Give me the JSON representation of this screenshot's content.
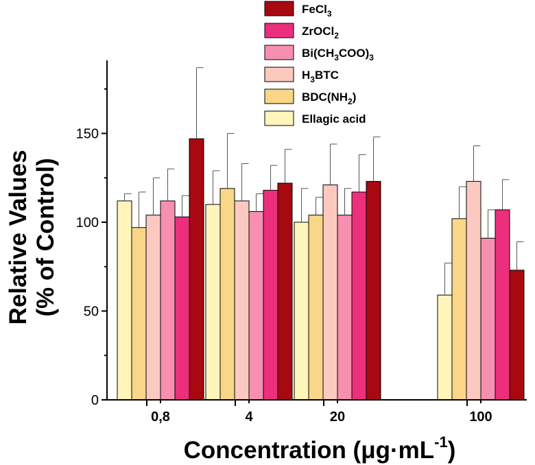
{
  "chart_data": {
    "type": "bar",
    "title": "",
    "xlabel": "Concentration (μg·mL",
    "xlabel_sup": "-1",
    "xlabel_tail": ")",
    "ylabel_line1": "Relative Values",
    "ylabel_line2": "(% of Control)",
    "ylim": [
      0,
      190
    ],
    "yticks": [
      0,
      50,
      100,
      150
    ],
    "categories": [
      "0,8",
      "4",
      "20",
      "100"
    ],
    "series": [
      {
        "name": "Ellagic acid",
        "color": "#FFF5BA",
        "values": [
          112,
          110,
          100,
          59
        ],
        "errors": [
          4,
          19,
          19,
          18
        ]
      },
      {
        "name": "BDC(NH2)",
        "color": "#F9D688",
        "values": [
          97,
          119,
          104,
          102
        ],
        "errors": [
          20,
          31,
          10,
          18
        ]
      },
      {
        "name": "H3BTC",
        "color": "#FCC9C0",
        "values": [
          104,
          112,
          121,
          123
        ],
        "errors": [
          21,
          21,
          23,
          20
        ]
      },
      {
        "name": "Bi(CH3COO)3",
        "color": "#F78FB0",
        "values": [
          112,
          106,
          104,
          91
        ],
        "errors": [
          18,
          10,
          15,
          16
        ]
      },
      {
        "name": "ZrOCl2",
        "color": "#EC2F7C",
        "values": [
          103,
          118,
          117,
          107
        ],
        "errors": [
          12,
          14,
          21,
          17
        ]
      },
      {
        "name": "FeCl3",
        "color": "#A8080F",
        "values": [
          147,
          122,
          123,
          73
        ],
        "errors": [
          40,
          19,
          25,
          16
        ]
      }
    ],
    "legend": [
      {
        "label": "FeCl",
        "sub": "3",
        "tail": "",
        "color": "#A8080F"
      },
      {
        "label": "ZrOCl",
        "sub": "2",
        "tail": "",
        "color": "#EC2F7C"
      },
      {
        "label": "Bi(CH",
        "sub": "3",
        "tail": "COO)",
        "sub2": "3",
        "color": "#F78FB0"
      },
      {
        "label": "H",
        "sub": "3",
        "tail": "BTC",
        "color": "#FCC9C0"
      },
      {
        "label": "BDC(NH",
        "sub": "2",
        "tail": ")",
        "color": "#F9D688"
      },
      {
        "label": "Ellagic acid",
        "sub": "",
        "tail": "",
        "color": "#FFF5BA"
      }
    ]
  }
}
